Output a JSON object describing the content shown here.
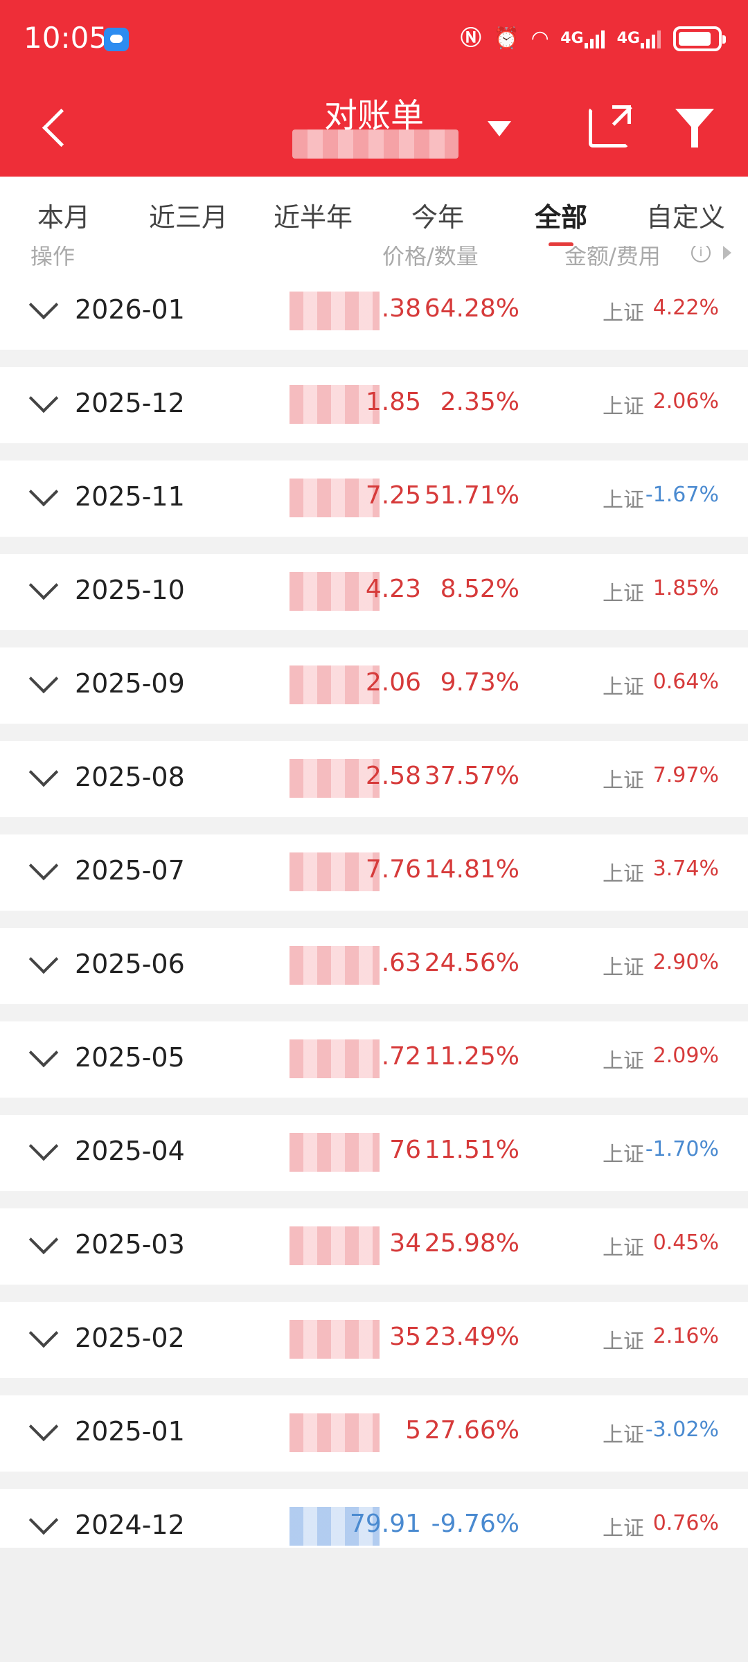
{
  "status": {
    "time": "10:05",
    "net1": "4G",
    "net2": "4G"
  },
  "header": {
    "title": "对账单"
  },
  "tabs": [
    "本月",
    "近三月",
    "近半年",
    "今年",
    "全部",
    "自定义"
  ],
  "active_tab": "全部",
  "columns": {
    "op": "操作",
    "price_qty": "价格/数量",
    "amount_fee": "金额/费用",
    "info": "i"
  },
  "rows": [
    {
      "month": "2026-01",
      "tail": ".38",
      "pct": "64.28%",
      "trend": "up",
      "idx_name": "上证",
      "idx_val": "4.22%",
      "idx_trend": "up"
    },
    {
      "month": "2025-12",
      "tail": "1.85",
      "pct": "2.35%",
      "trend": "up",
      "idx_name": "上证",
      "idx_val": "2.06%",
      "idx_trend": "up"
    },
    {
      "month": "2025-11",
      "tail": "7.25",
      "pct": "51.71%",
      "trend": "up",
      "idx_name": "上证",
      "idx_val": "-1.67%",
      "idx_trend": "down"
    },
    {
      "month": "2025-10",
      "tail": "4.23",
      "pct": "8.52%",
      "trend": "up",
      "idx_name": "上证",
      "idx_val": "1.85%",
      "idx_trend": "up"
    },
    {
      "month": "2025-09",
      "tail": "2.06",
      "pct": "9.73%",
      "trend": "up",
      "idx_name": "上证",
      "idx_val": "0.64%",
      "idx_trend": "up"
    },
    {
      "month": "2025-08",
      "tail": "2.58",
      "pct": "37.57%",
      "trend": "up",
      "idx_name": "上证",
      "idx_val": "7.97%",
      "idx_trend": "up"
    },
    {
      "month": "2025-07",
      "tail": "7.76",
      "pct": "14.81%",
      "trend": "up",
      "idx_name": "上证",
      "idx_val": "3.74%",
      "idx_trend": "up"
    },
    {
      "month": "2025-06",
      "tail": ".63",
      "pct": "24.56%",
      "trend": "up",
      "idx_name": "上证",
      "idx_val": "2.90%",
      "idx_trend": "up"
    },
    {
      "month": "2025-05",
      "tail": ".72",
      "pct": "11.25%",
      "trend": "up",
      "idx_name": "上证",
      "idx_val": "2.09%",
      "idx_trend": "up"
    },
    {
      "month": "2025-04",
      "tail": "76",
      "pct": "11.51%",
      "trend": "up",
      "idx_name": "上证",
      "idx_val": "-1.70%",
      "idx_trend": "down"
    },
    {
      "month": "2025-03",
      "tail": "34",
      "pct": "25.98%",
      "trend": "up",
      "idx_name": "上证",
      "idx_val": "0.45%",
      "idx_trend": "up"
    },
    {
      "month": "2025-02",
      "tail": "35",
      "pct": "23.49%",
      "trend": "up",
      "idx_name": "上证",
      "idx_val": "2.16%",
      "idx_trend": "up"
    },
    {
      "month": "2025-01",
      "tail": "5",
      "pct": "27.66%",
      "trend": "up",
      "idx_name": "上证",
      "idx_val": "-3.02%",
      "idx_trend": "down"
    },
    {
      "month": "2024-12",
      "tail": "79.91",
      "pct": "-9.76%",
      "trend": "down",
      "idx_name": "上证",
      "idx_val": "0.76%",
      "idx_trend": "up"
    }
  ]
}
